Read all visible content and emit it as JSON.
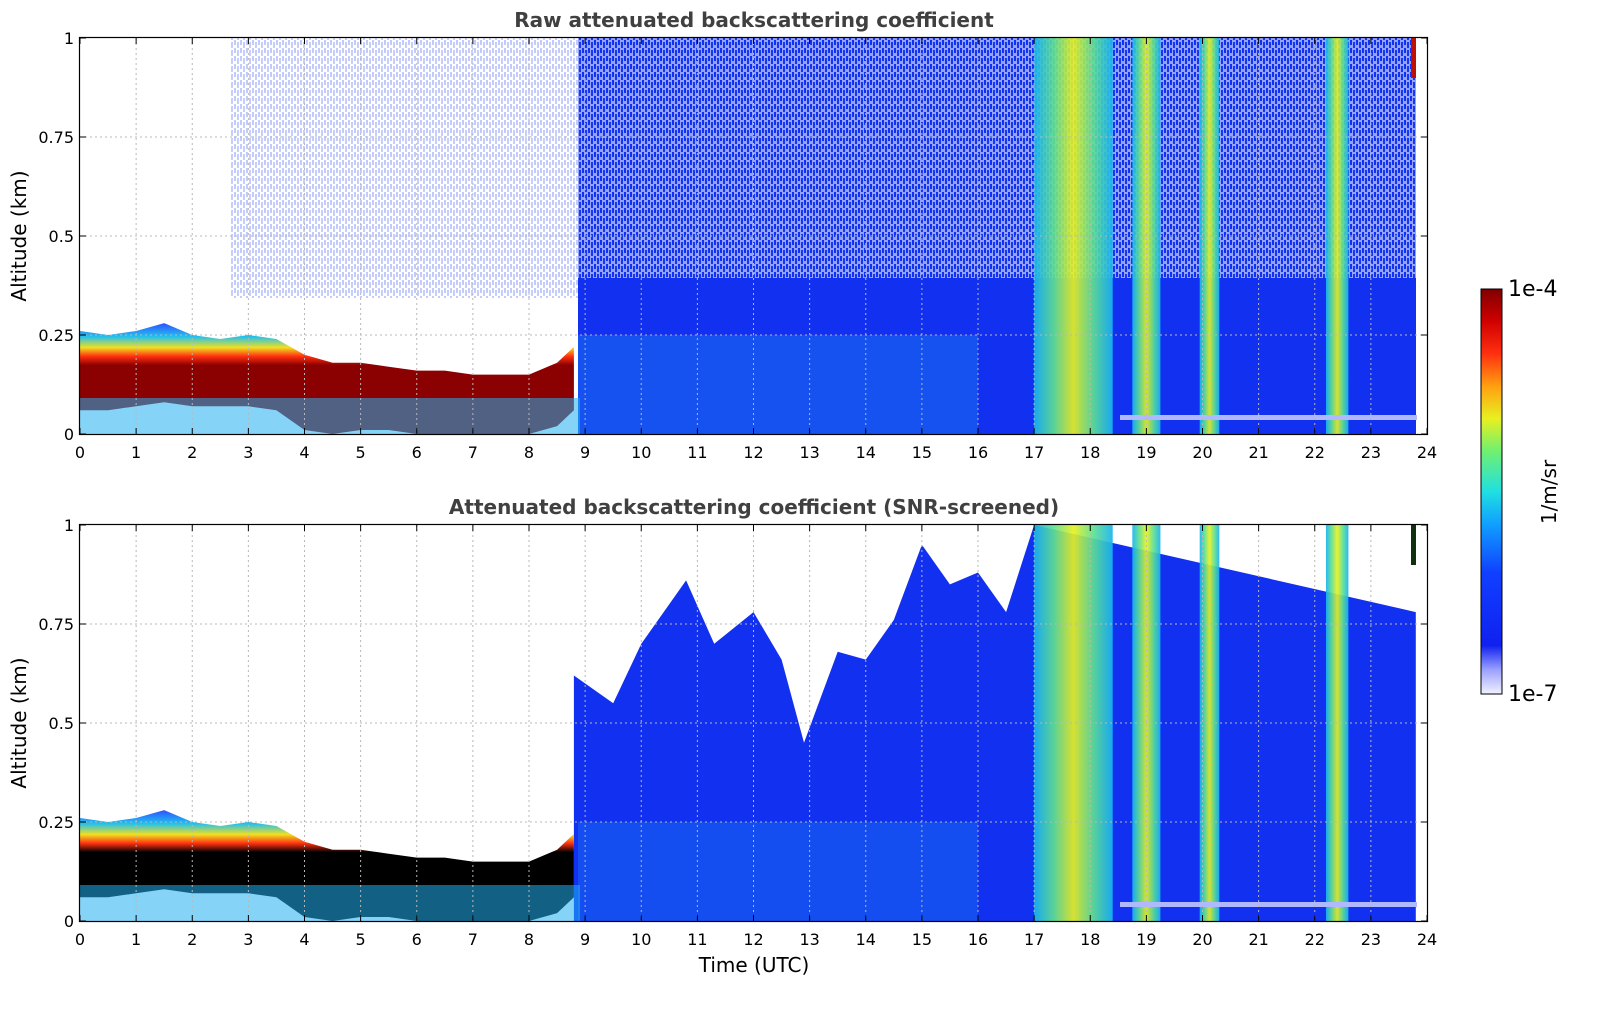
{
  "chart_data": [
    {
      "type": "heatmap",
      "title": "Raw attenuated backscattering coefficient",
      "xlabel": "",
      "ylabel": "Altitude (km)",
      "xlim": [
        0,
        24
      ],
      "ylim": [
        0,
        1
      ],
      "xticks": [
        "0",
        "1",
        "2",
        "3",
        "4",
        "5",
        "6",
        "7",
        "8",
        "9",
        "10",
        "11",
        "12",
        "13",
        "14",
        "15",
        "16",
        "17",
        "18",
        "19",
        "20",
        "21",
        "22",
        "23",
        "24"
      ],
      "yticks": [
        "0",
        "0.25",
        "0.5",
        "0.75",
        "1"
      ],
      "grid": true,
      "layers": [
        {
          "name": "aerosol-layer-top",
          "x": [
            0,
            0.5,
            1,
            1.5,
            2,
            2.5,
            3,
            3.5,
            4,
            4.5,
            5,
            5.5,
            6,
            6.5,
            7,
            7.5,
            8,
            8.5,
            8.8
          ],
          "values": [
            0.26,
            0.25,
            0.26,
            0.28,
            0.25,
            0.24,
            0.25,
            0.24,
            0.2,
            0.18,
            0.18,
            0.17,
            0.16,
            0.16,
            0.15,
            0.15,
            0.15,
            0.18,
            0.22
          ]
        },
        {
          "name": "aerosol-layer-bottom",
          "x": [
            0,
            0.5,
            1,
            1.5,
            2,
            2.5,
            3,
            3.5,
            4,
            4.5,
            5,
            5.5,
            6,
            6.5,
            7,
            7.5,
            8,
            8.5,
            8.8
          ],
          "values": [
            0.06,
            0.06,
            0.07,
            0.08,
            0.07,
            0.07,
            0.07,
            0.06,
            0.01,
            0,
            0.01,
            0.01,
            0,
            0,
            0,
            0,
            0,
            0.02,
            0.06
          ]
        }
      ],
      "cloud_columns_utc": [
        [
          17.0,
          18.4
        ],
        [
          18.75,
          19.25
        ],
        [
          19.95,
          20.3
        ],
        [
          22.2,
          22.6
        ]
      ]
    },
    {
      "type": "heatmap",
      "title": "Attenuated backscattering coefficient (SNR-screened)",
      "xlabel": "Time (UTC)",
      "ylabel": "Altitude (km)",
      "xlim": [
        0,
        24
      ],
      "ylim": [
        0,
        1
      ],
      "xticks": [
        "0",
        "1",
        "2",
        "3",
        "4",
        "5",
        "6",
        "7",
        "8",
        "9",
        "10",
        "11",
        "12",
        "13",
        "14",
        "15",
        "16",
        "17",
        "18",
        "19",
        "20",
        "21",
        "22",
        "23",
        "24"
      ],
      "yticks": [
        "0",
        "0.25",
        "0.5",
        "0.75",
        "1"
      ],
      "grid": true,
      "screened_top": {
        "x": [
          8.8,
          9.5,
          10,
          10.8,
          11.3,
          12,
          12.5,
          12.9,
          13.5,
          14,
          14.5,
          15,
          15.5,
          16,
          16.5,
          17
        ],
        "values": [
          0.62,
          0.55,
          0.7,
          0.86,
          0.7,
          0.78,
          0.66,
          0.45,
          0.68,
          0.66,
          0.76,
          0.95,
          0.85,
          0.88,
          0.78,
          1.0
        ]
      }
    }
  ],
  "colorbar": {
    "label": "1/m/sr",
    "max_label": "1e-4",
    "min_label": "1e-7",
    "scale": "log"
  },
  "colors": {
    "low": "#0a1ef0",
    "mid": "#18b4f0",
    "high_warm": "#f0e020",
    "saturated_raw": "#8b0000",
    "saturated_screened": "#000000"
  }
}
